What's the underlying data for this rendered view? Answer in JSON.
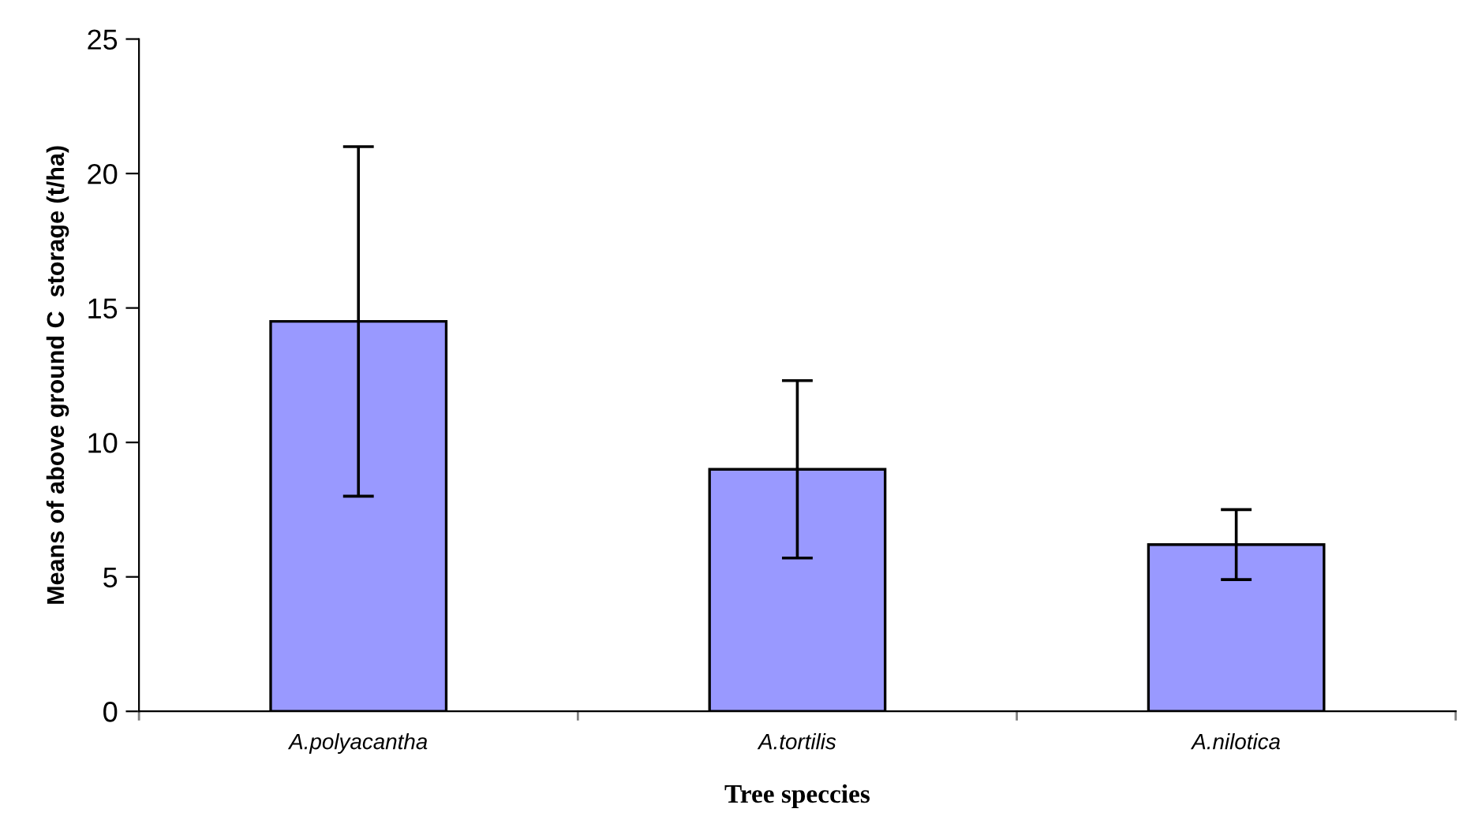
{
  "chart_data": {
    "type": "bar",
    "xlabel": "Tree speccies",
    "ylabel": "Means of above ground C  storage (t/ha)",
    "categories": [
      "A.polyacantha",
      "A.tortilis",
      "A.nilotica"
    ],
    "values": [
      14.5,
      9.0,
      6.2
    ],
    "errors": [
      6.5,
      3.3,
      1.3
    ],
    "color": "#9999ff",
    "ylim": [
      0,
      25
    ],
    "yticks": [
      0,
      5,
      10,
      15,
      20,
      25
    ],
    "grid": false
  }
}
